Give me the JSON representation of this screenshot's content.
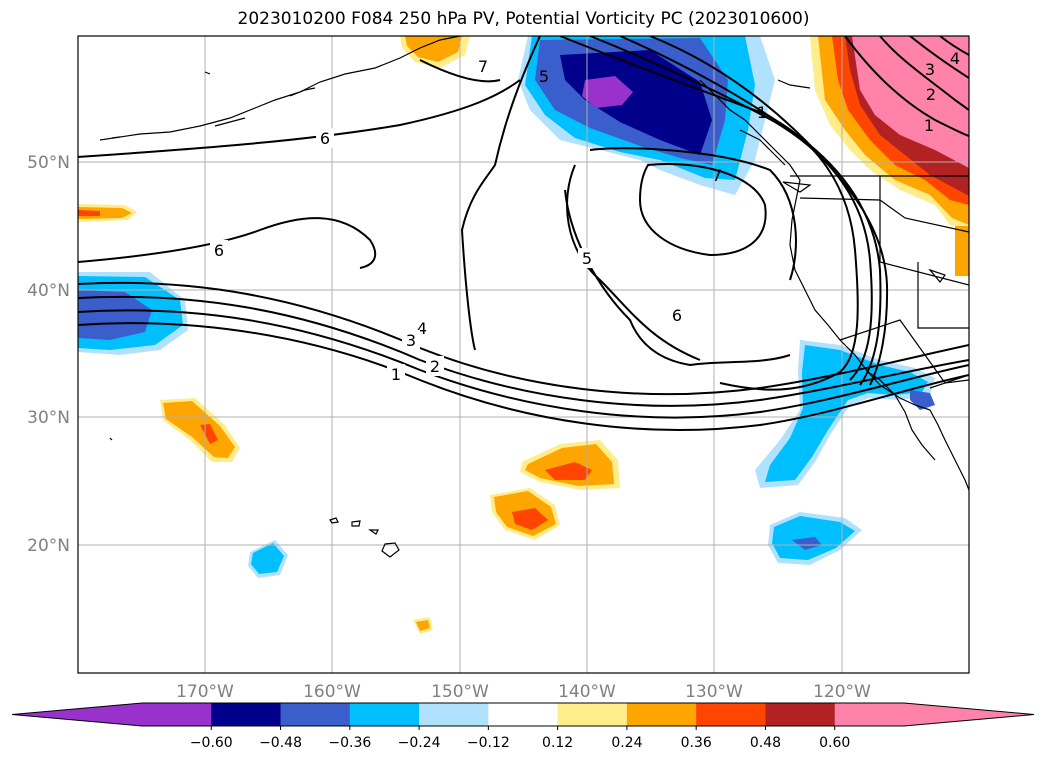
{
  "title": "2023010200 F084 250 hPa PV, Potential Vorticity PC (2023010600)",
  "latitude_labels": [
    "50°N",
    "40°N",
    "30°N",
    "20°N"
  ],
  "longitude_labels": [
    "170°W",
    "160°W",
    "150°W",
    "140°W",
    "130°W",
    "120°W"
  ],
  "colorbar": {
    "tick_labels": [
      "−0.60",
      "−0.48",
      "−0.36",
      "−0.24",
      "−0.12",
      "0.12",
      "0.24",
      "0.36",
      "0.48",
      "0.60"
    ],
    "colors": [
      "#9932cc",
      "#9932cc",
      "#00008b",
      "#3a5fcd",
      "#00bfff",
      "#b0e2ff",
      "#ffffff",
      "#ffec8b",
      "#ffa500",
      "#ff4500",
      "#b22222",
      "#ff82ab",
      "#ff82ab"
    ]
  },
  "contour_labels": [
    "7",
    "5",
    "6",
    "6",
    "4",
    "3",
    "2",
    "1",
    "5",
    "6",
    "7",
    "1",
    "1",
    "2",
    "3",
    "4"
  ]
}
